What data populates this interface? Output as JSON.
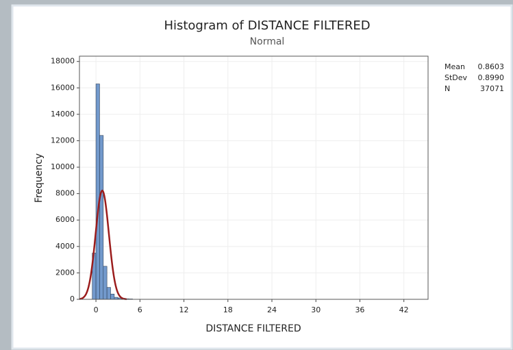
{
  "chart_data": {
    "type": "histogram",
    "title": "Histogram of DISTANCE FILTERED",
    "subtitle": "Normal",
    "x_label": "DISTANCE FILTERED",
    "y_label": "Frequency",
    "bins": [
      -0.5,
      0,
      0.5,
      1,
      1.5,
      2,
      2.5,
      3,
      3.5,
      4,
      4.5,
      5
    ],
    "counts": [
      3500,
      16300,
      12400,
      2500,
      900,
      400,
      150,
      100,
      80,
      40,
      30
    ],
    "color": "#7299cc",
    "edge_color": "#2f3f55",
    "fit_color": "#9b1c1c",
    "xlim": [
      -2.25,
      45.3
    ],
    "ylim": [
      0,
      18400
    ],
    "xticks": [
      0,
      6,
      12,
      18,
      24,
      30,
      36,
      42
    ],
    "yticks": [
      0,
      2000,
      4000,
      6000,
      8000,
      10000,
      12000,
      14000,
      16000,
      18000
    ],
    "grid": true,
    "stats": {
      "labels": [
        "Mean",
        "StDev",
        "N"
      ],
      "values": [
        0.8603,
        0.899,
        37071
      ],
      "value_labels": [
        "0.8603",
        "0.8990",
        "37071"
      ]
    }
  }
}
